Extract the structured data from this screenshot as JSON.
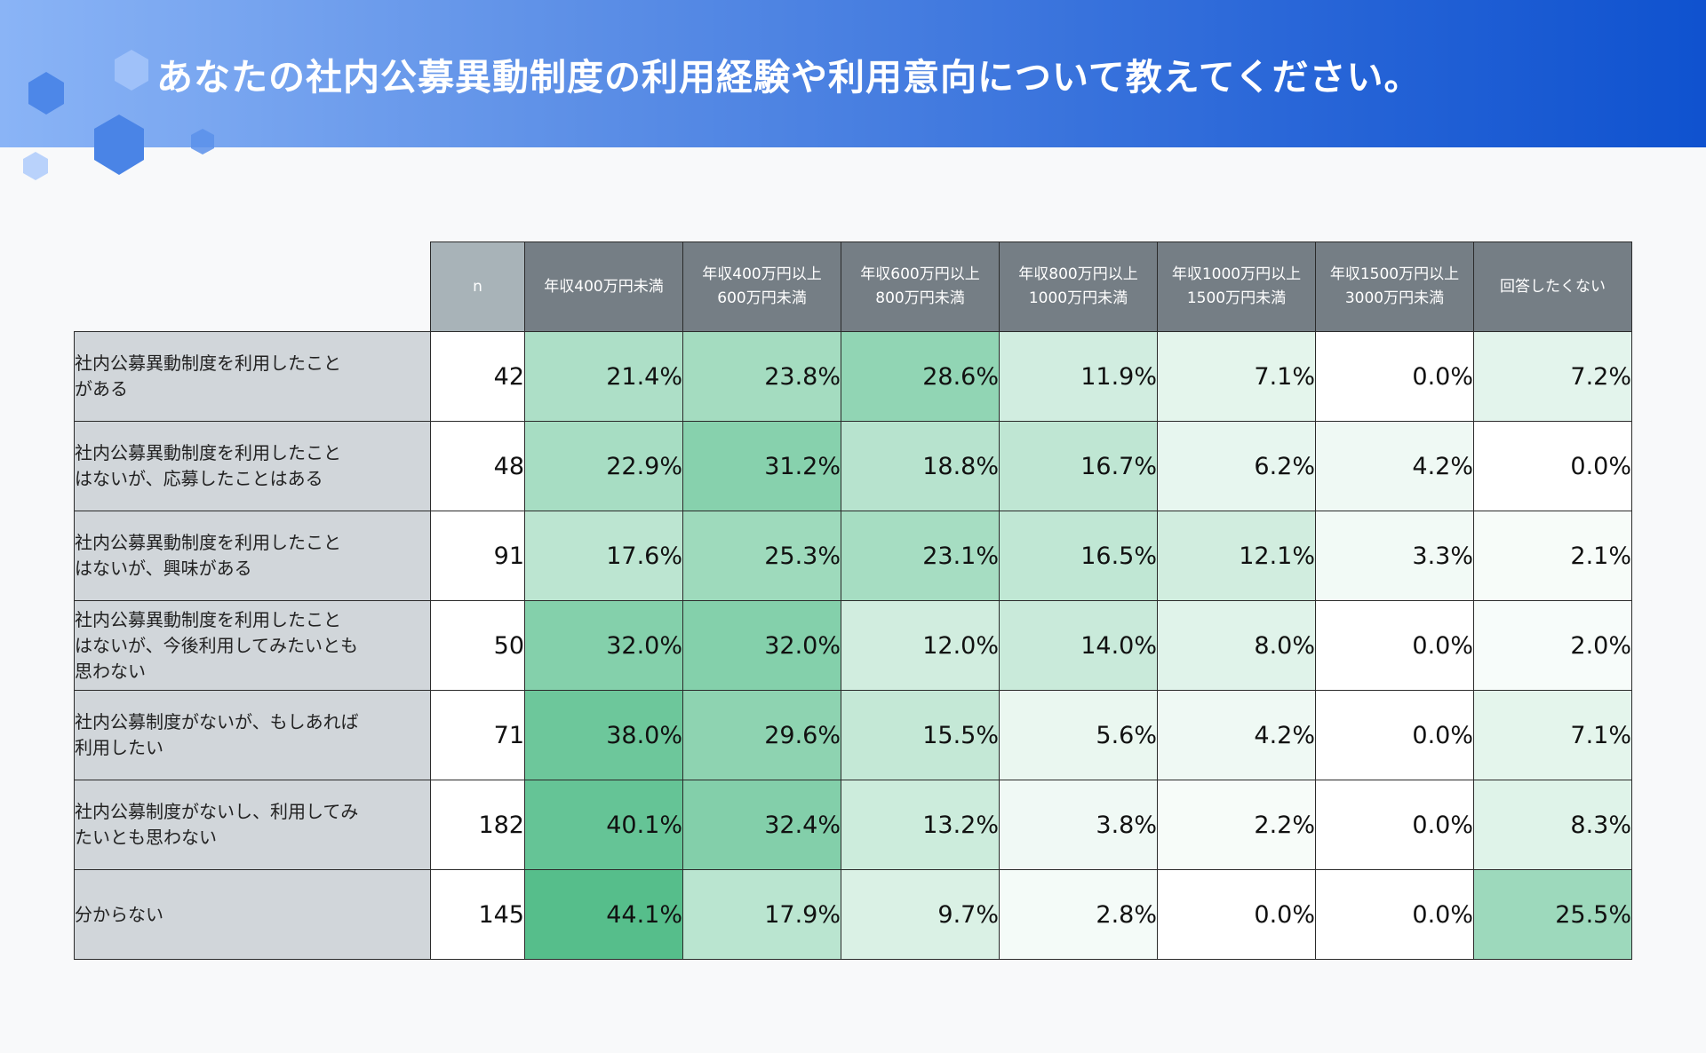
{
  "title": "あなたの社内公募異動制度の利用経験や利用意向について教えてください。",
  "colors": {
    "heat_low": "#ffffff",
    "heat_high": "#56be8b",
    "header_bg": "#757e85",
    "n_header_bg": "#a8b3b8",
    "row_header_bg": "#d1d6da"
  },
  "chart_data": {
    "type": "heatmap",
    "n_label": "n",
    "columns": [
      "年収400万円未満",
      "年収400万円以上\n600万円未満",
      "年収600万円以上\n800万円未満",
      "年収800万円以上\n1000万円未満",
      "年収1000万円以上\n1500万円未満",
      "年収1500万円以上\n3000万円未満",
      "回答したくない"
    ],
    "rows": [
      {
        "label": "社内公募異動制度を利用したこと\nがある",
        "n": 42,
        "values": [
          "21.4%",
          "23.8%",
          "28.6%",
          "11.9%",
          "7.1%",
          "0.0%",
          "7.2%"
        ]
      },
      {
        "label": "社内公募異動制度を利用したこと\nはないが、応募したことはある",
        "n": 48,
        "values": [
          "22.9%",
          "31.2%",
          "18.8%",
          "16.7%",
          "6.2%",
          "4.2%",
          "0.0%"
        ]
      },
      {
        "label": "社内公募異動制度を利用したこと\nはないが、興味がある",
        "n": 91,
        "values": [
          "17.6%",
          "25.3%",
          "23.1%",
          "16.5%",
          "12.1%",
          "3.3%",
          "2.1%"
        ]
      },
      {
        "label": "社内公募異動制度を利用したこと\nはないが、今後利用してみたいとも\n思わない",
        "n": 50,
        "values": [
          "32.0%",
          "32.0%",
          "12.0%",
          "14.0%",
          "8.0%",
          "0.0%",
          "2.0%"
        ]
      },
      {
        "label": "社内公募制度がないが、もしあれば\n利用したい",
        "n": 71,
        "values": [
          "38.0%",
          "29.6%",
          "15.5%",
          "5.6%",
          "4.2%",
          "0.0%",
          "7.1%"
        ]
      },
      {
        "label": "社内公募制度がないし、利用してみ\nたいとも思わない",
        "n": 182,
        "values": [
          "40.1%",
          "32.4%",
          "13.2%",
          "3.8%",
          "2.2%",
          "0.0%",
          "8.3%"
        ]
      },
      {
        "label": "分からない",
        "n": 145,
        "values": [
          "44.1%",
          "17.9%",
          "9.7%",
          "2.8%",
          "0.0%",
          "0.0%",
          "25.5%"
        ]
      }
    ]
  }
}
